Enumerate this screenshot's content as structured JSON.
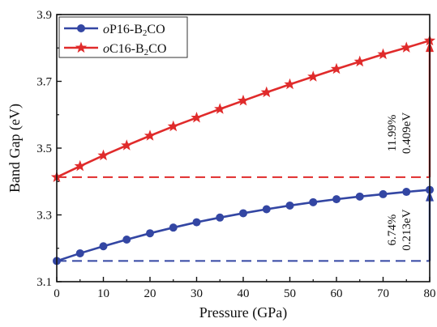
{
  "chart_data": {
    "type": "line",
    "xlabel": "Pressure (GPa)",
    "ylabel": "Band Gap (eV)",
    "xlim": [
      0,
      80
    ],
    "ylim": [
      3.1,
      3.9
    ],
    "xticks": [
      0,
      10,
      20,
      30,
      40,
      50,
      60,
      70,
      80
    ],
    "yticks": [
      3.1,
      3.3,
      3.5,
      3.7,
      3.9
    ],
    "x": [
      0,
      5,
      10,
      15,
      20,
      25,
      30,
      35,
      40,
      45,
      50,
      55,
      60,
      65,
      70,
      75,
      80
    ],
    "series": [
      {
        "name": "oP16-B2CO",
        "name_italic": "o",
        "name_main": "P16-B",
        "name_sub": "2",
        "name_tail": "CO",
        "color": "#3346a3",
        "marker": "circle",
        "values": [
          3.162,
          3.185,
          3.206,
          3.226,
          3.245,
          3.262,
          3.278,
          3.292,
          3.305,
          3.317,
          3.328,
          3.338,
          3.347,
          3.355,
          3.362,
          3.369,
          3.375
        ],
        "reference_line_y": 3.162
      },
      {
        "name": "oC16-B2CO",
        "name_italic": "o",
        "name_main": "C16-B",
        "name_sub": "2",
        "name_tail": "CO",
        "color": "#e02b2b",
        "marker": "star",
        "values": [
          3.413,
          3.446,
          3.478,
          3.508,
          3.537,
          3.565,
          3.591,
          3.617,
          3.642,
          3.667,
          3.691,
          3.714,
          3.737,
          3.759,
          3.781,
          3.801,
          3.822
        ],
        "reference_line_y": 3.413
      }
    ],
    "annotations": [
      {
        "id": "red-pct",
        "text": "11.99%"
      },
      {
        "id": "red-ev",
        "text": "0.409eV"
      },
      {
        "id": "blue-pct",
        "text": "6.74%"
      },
      {
        "id": "blue-ev",
        "text": "0.213eV"
      }
    ],
    "legend_position": "top-left",
    "grid": false
  }
}
